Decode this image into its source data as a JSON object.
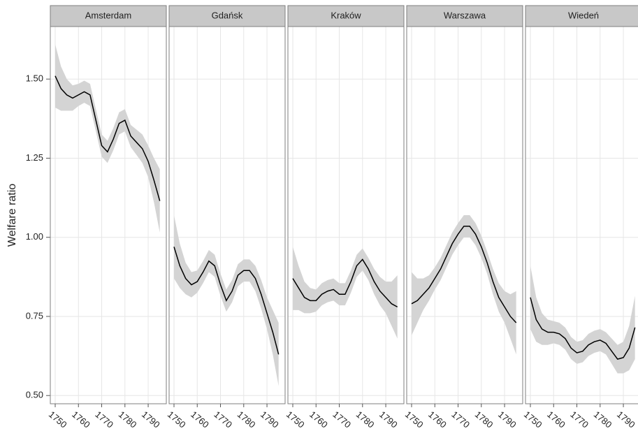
{
  "chart_data": {
    "type": "line",
    "ylabel": "Welfare ratio",
    "ylim": [
      0.474,
      1.666
    ],
    "yticks": [
      {
        "value": 0.5,
        "label": "0.50"
      },
      0.75,
      {
        "value": 1.0,
        "label": "1.00"
      },
      1.25,
      {
        "value": 1.5,
        "label": "1.50"
      }
    ],
    "xlim": [
      1747.9,
      1797.8
    ],
    "xticks": [
      1750,
      1760,
      1770,
      1780,
      1790
    ],
    "grid": true,
    "line_color": "#000000",
    "band_color": "#d4d4d4",
    "x": [
      1750,
      1752.5,
      1755,
      1757.5,
      1760,
      1762.5,
      1765,
      1767.5,
      1770,
      1772.5,
      1775,
      1777.5,
      1780,
      1782.5,
      1785,
      1787.5,
      1790,
      1792.5,
      1795
    ],
    "facets": [
      {
        "title": "Amsterdam",
        "values": [
          1.51,
          1.47,
          1.45,
          1.44,
          1.45,
          1.46,
          1.45,
          1.37,
          1.29,
          1.27,
          1.31,
          1.36,
          1.37,
          1.32,
          1.3,
          1.28,
          1.24,
          1.18,
          1.115
        ],
        "lower": [
          1.41,
          1.4,
          1.4,
          1.4,
          1.415,
          1.425,
          1.415,
          1.335,
          1.255,
          1.235,
          1.275,
          1.325,
          1.335,
          1.285,
          1.26,
          1.235,
          1.19,
          1.11,
          1.015
        ],
        "upper": [
          1.61,
          1.54,
          1.5,
          1.48,
          1.485,
          1.495,
          1.485,
          1.405,
          1.325,
          1.305,
          1.345,
          1.395,
          1.405,
          1.355,
          1.34,
          1.325,
          1.29,
          1.25,
          1.215
        ]
      },
      {
        "title": "Gdańsk",
        "values": [
          0.97,
          0.91,
          0.87,
          0.85,
          0.86,
          0.89,
          0.925,
          0.91,
          0.85,
          0.8,
          0.83,
          0.88,
          0.895,
          0.895,
          0.87,
          0.82,
          0.76,
          0.7,
          0.63
        ],
        "lower": [
          0.87,
          0.84,
          0.82,
          0.81,
          0.825,
          0.855,
          0.89,
          0.875,
          0.815,
          0.765,
          0.795,
          0.845,
          0.86,
          0.86,
          0.83,
          0.775,
          0.71,
          0.63,
          0.53
        ],
        "upper": [
          1.07,
          0.98,
          0.92,
          0.89,
          0.895,
          0.925,
          0.96,
          0.945,
          0.885,
          0.835,
          0.865,
          0.915,
          0.93,
          0.93,
          0.91,
          0.865,
          0.81,
          0.77,
          0.73
        ]
      },
      {
        "title": "Kraków",
        "values": [
          0.87,
          0.84,
          0.81,
          0.8,
          0.8,
          0.82,
          0.83,
          0.835,
          0.82,
          0.82,
          0.86,
          0.91,
          0.93,
          0.9,
          0.86,
          0.83,
          0.81,
          0.79,
          0.78
        ],
        "lower": [
          0.77,
          0.77,
          0.76,
          0.76,
          0.765,
          0.785,
          0.795,
          0.8,
          0.785,
          0.785,
          0.825,
          0.875,
          0.895,
          0.865,
          0.82,
          0.785,
          0.76,
          0.72,
          0.68
        ],
        "upper": [
          0.97,
          0.91,
          0.86,
          0.84,
          0.835,
          0.855,
          0.865,
          0.87,
          0.855,
          0.855,
          0.895,
          0.945,
          0.965,
          0.935,
          0.9,
          0.875,
          0.86,
          0.86,
          0.88
        ]
      },
      {
        "title": "Warszawa",
        "values": [
          0.79,
          0.8,
          0.82,
          0.84,
          0.87,
          0.9,
          0.94,
          0.98,
          1.01,
          1.035,
          1.035,
          1.01,
          0.97,
          0.92,
          0.86,
          0.81,
          0.78,
          0.75,
          0.73
        ],
        "lower": [
          0.69,
          0.73,
          0.77,
          0.8,
          0.835,
          0.865,
          0.905,
          0.945,
          0.975,
          1.0,
          1.0,
          0.975,
          0.935,
          0.885,
          0.82,
          0.765,
          0.73,
          0.68,
          0.63
        ],
        "upper": [
          0.89,
          0.87,
          0.87,
          0.88,
          0.905,
          0.935,
          0.975,
          1.015,
          1.045,
          1.07,
          1.07,
          1.045,
          1.005,
          0.955,
          0.9,
          0.855,
          0.83,
          0.82,
          0.83
        ]
      },
      {
        "title": "Wiedeń",
        "values": [
          0.81,
          0.74,
          0.71,
          0.7,
          0.7,
          0.695,
          0.68,
          0.65,
          0.635,
          0.64,
          0.66,
          0.67,
          0.675,
          0.665,
          0.64,
          0.615,
          0.62,
          0.65,
          0.715
        ],
        "lower": [
          0.71,
          0.67,
          0.66,
          0.66,
          0.665,
          0.66,
          0.645,
          0.615,
          0.6,
          0.605,
          0.625,
          0.635,
          0.64,
          0.63,
          0.6,
          0.57,
          0.57,
          0.58,
          0.615
        ],
        "upper": [
          0.91,
          0.81,
          0.76,
          0.74,
          0.735,
          0.73,
          0.715,
          0.685,
          0.67,
          0.675,
          0.695,
          0.705,
          0.71,
          0.7,
          0.68,
          0.66,
          0.67,
          0.72,
          0.815
        ]
      }
    ]
  }
}
